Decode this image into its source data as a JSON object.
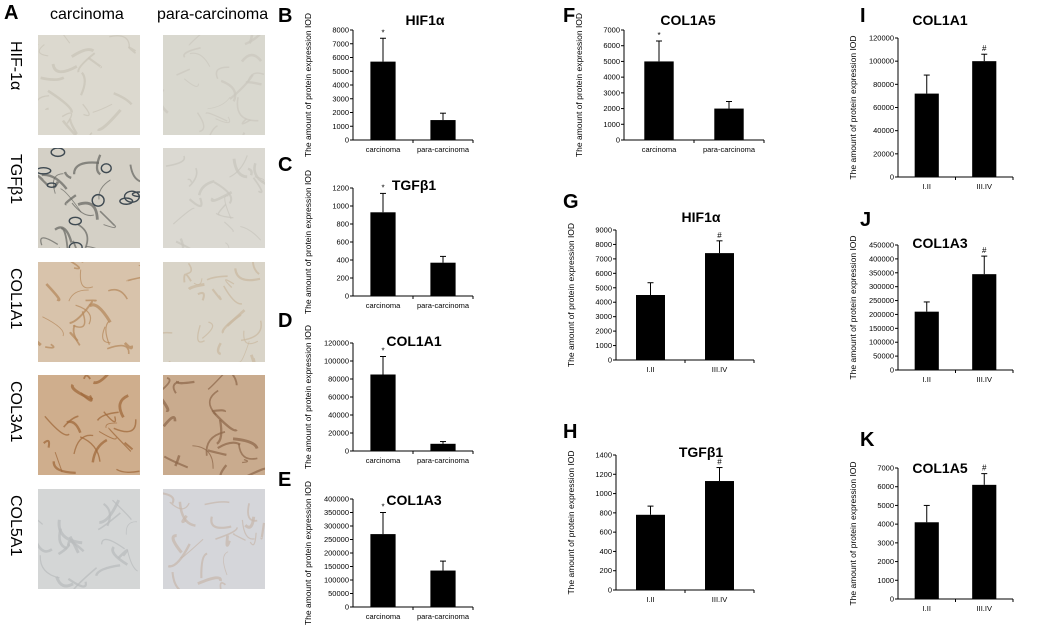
{
  "panel_a": {
    "letter": "A",
    "columns": [
      "carcinoma",
      "para-carcinoma"
    ],
    "rows": [
      {
        "label": "HIF-1α",
        "tone_left": "#dcd9cf",
        "tone_right": "#d9d8cf",
        "stain_left": "#c9c4b8",
        "stain_right": "#cbc8bf"
      },
      {
        "label": "TGFβ1",
        "tone_left": "#d4d0c6",
        "tone_right": "#dbd9d2",
        "stain_left": "#6b6b66",
        "stain_right": "#c8c5bd"
      },
      {
        "label": "COL1A1",
        "tone_left": "#d8c3ab",
        "tone_right": "#d9d4c8",
        "stain_left": "#b6895d",
        "stain_right": "#c9b9a2"
      },
      {
        "label": "COL3A1",
        "tone_left": "#cfae8d",
        "tone_right": "#c9ab8e",
        "stain_left": "#a06a3c",
        "stain_right": "#8f6a4c"
      },
      {
        "label": "COL5A1",
        "tone_left": "#d4d6d6",
        "tone_right": "#d5d6da",
        "stain_left": "#b9bcbd",
        "stain_right": "#c7b8ad"
      }
    ]
  },
  "y_axis_label": "The amount of protein expression IOD",
  "chart_data": [
    {
      "panel": "B",
      "type": "bar",
      "title": "HIF1α",
      "categories": [
        "carcinoma",
        "para-carcinoma"
      ],
      "values": [
        5700,
        1450
      ],
      "errors": [
        1700,
        500
      ],
      "marks": [
        "*",
        ""
      ],
      "ylim": [
        0,
        8000
      ],
      "yticks": [
        0,
        1000,
        2000,
        3000,
        4000,
        5000,
        6000,
        7000,
        8000
      ]
    },
    {
      "panel": "C",
      "type": "bar",
      "title": "TGFβ1",
      "categories": [
        "carcinoma",
        "para-carcinoma"
      ],
      "values": [
        930,
        370
      ],
      "errors": [
        210,
        70
      ],
      "marks": [
        "*",
        ""
      ],
      "ylim": [
        0,
        1200
      ],
      "yticks": [
        0,
        200,
        400,
        600,
        800,
        1000,
        1200
      ]
    },
    {
      "panel": "D",
      "type": "bar",
      "title": "COL1A1",
      "categories": [
        "carcinoma",
        "para-carcinoma"
      ],
      "values": [
        85000,
        8000
      ],
      "errors": [
        20000,
        2500
      ],
      "marks": [
        "*",
        ""
      ],
      "ylim": [
        0,
        120000
      ],
      "yticks": [
        0,
        20000,
        40000,
        60000,
        80000,
        100000,
        120000
      ]
    },
    {
      "panel": "E",
      "type": "bar",
      "title": "COL1A3",
      "categories": [
        "carcinoma",
        "para-carcinoma"
      ],
      "values": [
        270000,
        135000
      ],
      "errors": [
        80000,
        35000
      ],
      "marks": [
        "*",
        ""
      ],
      "ylim": [
        0,
        400000
      ],
      "yticks": [
        0,
        50000,
        100000,
        150000,
        200000,
        250000,
        300000,
        350000,
        400000
      ]
    },
    {
      "panel": "F",
      "type": "bar",
      "title": "COL1A5",
      "categories": [
        "carcinoma",
        "para-carcinoma"
      ],
      "values": [
        5000,
        2000
      ],
      "errors": [
        1300,
        450
      ],
      "marks": [
        "*",
        ""
      ],
      "ylim": [
        0,
        7000
      ],
      "yticks": [
        0,
        1000,
        2000,
        3000,
        4000,
        5000,
        6000,
        7000
      ]
    },
    {
      "panel": "G",
      "type": "bar",
      "title": "HIF1α",
      "categories": [
        "I.II",
        "III.IV"
      ],
      "values": [
        4500,
        7400
      ],
      "errors": [
        850,
        850
      ],
      "marks": [
        "",
        "#"
      ],
      "ylim": [
        0,
        9000
      ],
      "yticks": [
        0,
        1000,
        2000,
        3000,
        4000,
        5000,
        6000,
        7000,
        8000,
        9000
      ]
    },
    {
      "panel": "H",
      "type": "bar",
      "title": "TGFβ1",
      "categories": [
        "I.II",
        "III.IV"
      ],
      "values": [
        780,
        1130
      ],
      "errors": [
        90,
        140
      ],
      "marks": [
        "",
        "#"
      ],
      "ylim": [
        0,
        1400
      ],
      "yticks": [
        0,
        200,
        400,
        600,
        800,
        1000,
        1200,
        1400
      ]
    },
    {
      "panel": "I",
      "type": "bar",
      "title": "COL1A1",
      "categories": [
        "I.II",
        "III.IV"
      ],
      "values": [
        72000,
        100000
      ],
      "errors": [
        16000,
        6000
      ],
      "marks": [
        "",
        "#"
      ],
      "ylim": [
        0,
        120000
      ],
      "yticks": [
        0,
        20000,
        40000,
        60000,
        80000,
        100000,
        120000
      ]
    },
    {
      "panel": "J",
      "type": "bar",
      "title": "COL1A3",
      "categories": [
        "I.II",
        "III.IV"
      ],
      "values": [
        210000,
        345000
      ],
      "errors": [
        35000,
        65000
      ],
      "marks": [
        "",
        "#"
      ],
      "ylim": [
        0,
        450000
      ],
      "yticks": [
        0,
        50000,
        100000,
        150000,
        200000,
        250000,
        300000,
        350000,
        400000,
        450000
      ]
    },
    {
      "panel": "K",
      "type": "bar",
      "title": "COL1A5",
      "categories": [
        "I.II",
        "III.IV"
      ],
      "values": [
        4100,
        6100
      ],
      "errors": [
        900,
        600
      ],
      "marks": [
        "",
        "#"
      ],
      "ylim": [
        0,
        7000
      ],
      "yticks": [
        0,
        1000,
        2000,
        3000,
        4000,
        5000,
        6000,
        7000
      ]
    }
  ]
}
